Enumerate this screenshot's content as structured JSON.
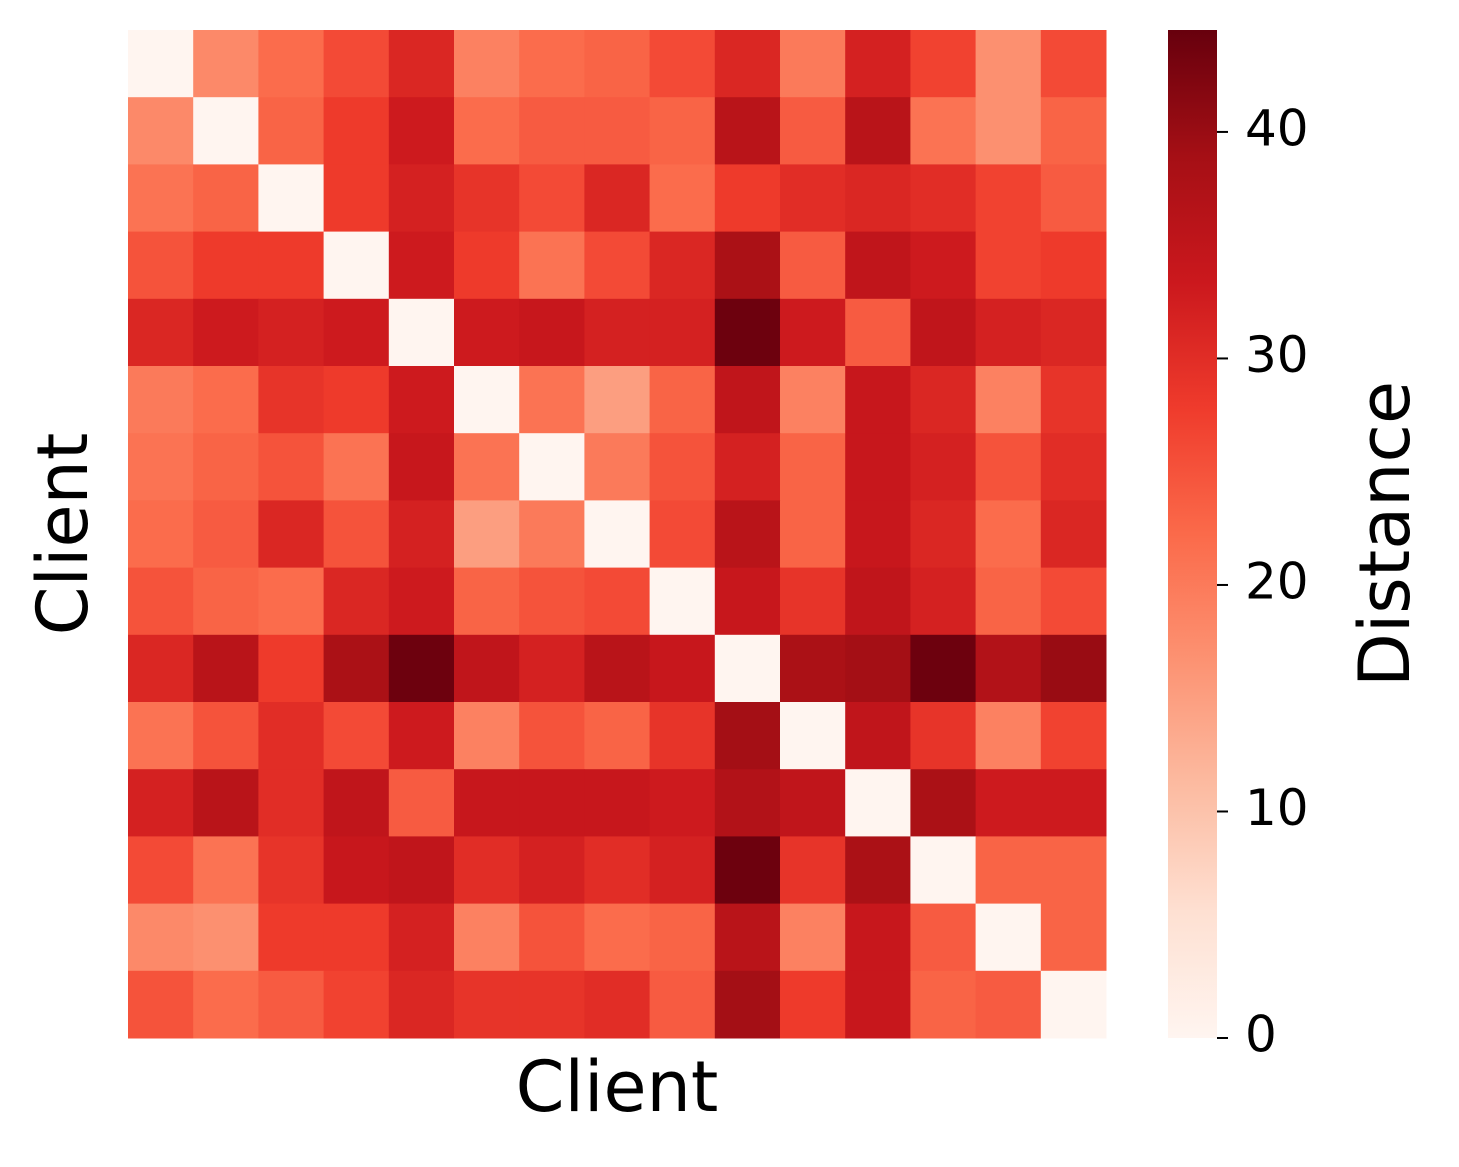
{
  "chart_data": {
    "type": "heatmap",
    "xlabel": "Client",
    "ylabel": "Client",
    "colorbar_label": "Distance",
    "colormap": "Reds",
    "zlim": [
      0,
      44.5
    ],
    "zticks": [
      0,
      10,
      20,
      30,
      40
    ],
    "values": [
      [
        0,
        18,
        22,
        26,
        31,
        19,
        22,
        23,
        26,
        31,
        20,
        32,
        27,
        17,
        26
      ],
      [
        18,
        0,
        23,
        28,
        33,
        22,
        24,
        24,
        23,
        36,
        24,
        36,
        21,
        17,
        23
      ],
      [
        21,
        23,
        0,
        28,
        32,
        29,
        26,
        31,
        22,
        28,
        30,
        31,
        30,
        27,
        24
      ],
      [
        25,
        28,
        28,
        0,
        33,
        28,
        21,
        26,
        31,
        38,
        24,
        35,
        33,
        27,
        28
      ],
      [
        31,
        33,
        32,
        33,
        0,
        33,
        34,
        32,
        32,
        44,
        33,
        24,
        35,
        32,
        31
      ],
      [
        20,
        22,
        29,
        28,
        33,
        0,
        21,
        15,
        23,
        35,
        19,
        34,
        31,
        19,
        29
      ],
      [
        21,
        23,
        25,
        21,
        34,
        21,
        0,
        20,
        25,
        32,
        23,
        34,
        32,
        25,
        30
      ],
      [
        22,
        24,
        31,
        25,
        32,
        15,
        20,
        0,
        26,
        36,
        23,
        34,
        31,
        22,
        31
      ],
      [
        25,
        23,
        22,
        31,
        33,
        23,
        25,
        26,
        0,
        34,
        29,
        35,
        32,
        23,
        26
      ],
      [
        31,
        36,
        28,
        38,
        44,
        35,
        32,
        36,
        34,
        0,
        38,
        39,
        44,
        37,
        40
      ],
      [
        21,
        25,
        30,
        26,
        33,
        19,
        25,
        23,
        29,
        39,
        0,
        35,
        29,
        19,
        27
      ],
      [
        32,
        36,
        30,
        35,
        24,
        34,
        34,
        34,
        33,
        37,
        35,
        0,
        38,
        33,
        33
      ],
      [
        26,
        21,
        29,
        34,
        35,
        30,
        32,
        30,
        32,
        44,
        29,
        38,
        0,
        23,
        23
      ],
      [
        18,
        17,
        28,
        28,
        32,
        19,
        25,
        22,
        23,
        36,
        19,
        34,
        24,
        0,
        23
      ],
      [
        25,
        22,
        24,
        27,
        31,
        29,
        29,
        30,
        24,
        39,
        28,
        34,
        23,
        24,
        0
      ]
    ]
  }
}
